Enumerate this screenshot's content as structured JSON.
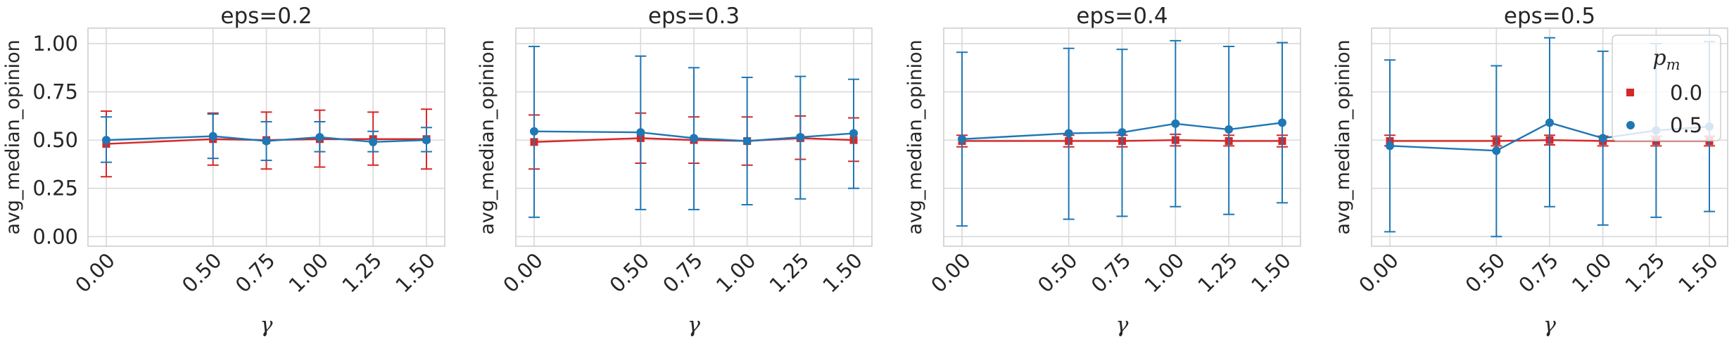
{
  "figure": {
    "legend": {
      "title": "p",
      "title_subscript": "m",
      "placement": "top-right of last panel",
      "entries": [
        {
          "label": "0.0",
          "color": "#d62728",
          "marker": "square"
        },
        {
          "label": "0.5",
          "color": "#1f77b4",
          "marker": "circle"
        }
      ]
    }
  },
  "chart_data": [
    {
      "type": "line",
      "title": "eps=0.2",
      "xlabel": "γ",
      "ylabel": "avg_median_opinion",
      "x": [
        0.0,
        0.5,
        0.75,
        1.0,
        1.25,
        1.5
      ],
      "x_tick_labels": [
        "0.00",
        "0.50",
        "0.75",
        "1.00",
        "1.25",
        "1.50"
      ],
      "ylim": [
        -0.05,
        1.08
      ],
      "y_ticks": [
        0.0,
        0.25,
        0.5,
        0.75,
        1.0
      ],
      "y_tick_labels": [
        "0.00",
        "0.25",
        "0.50",
        "0.75",
        "1.00"
      ],
      "grid": true,
      "series": [
        {
          "name": "0.0",
          "color": "#d62728",
          "marker": "square",
          "values": [
            0.48,
            0.505,
            0.5,
            0.505,
            0.505,
            0.505
          ],
          "err_low": [
            0.31,
            0.37,
            0.35,
            0.36,
            0.37,
            0.35
          ],
          "err_high": [
            0.65,
            0.64,
            0.645,
            0.655,
            0.645,
            0.66
          ]
        },
        {
          "name": "0.5",
          "color": "#1f77b4",
          "marker": "circle",
          "values": [
            0.5,
            0.52,
            0.495,
            0.515,
            0.49,
            0.5
          ],
          "err_low": [
            0.385,
            0.405,
            0.395,
            0.44,
            0.44,
            0.44
          ],
          "err_high": [
            0.62,
            0.635,
            0.595,
            0.595,
            0.545,
            0.565
          ]
        }
      ]
    },
    {
      "type": "line",
      "title": "eps=0.3",
      "xlabel": "γ",
      "ylabel": "avg_median_opinion",
      "x": [
        0.0,
        0.5,
        0.75,
        1.0,
        1.25,
        1.5
      ],
      "x_tick_labels": [
        "0.00",
        "0.50",
        "0.75",
        "1.00",
        "1.25",
        "1.50"
      ],
      "ylim": [
        -0.05,
        1.08
      ],
      "grid": true,
      "series": [
        {
          "name": "0.0",
          "color": "#d62728",
          "marker": "square",
          "values": [
            0.49,
            0.51,
            0.5,
            0.495,
            0.51,
            0.5
          ],
          "err_low": [
            0.35,
            0.38,
            0.38,
            0.37,
            0.4,
            0.39
          ],
          "err_high": [
            0.63,
            0.64,
            0.62,
            0.62,
            0.625,
            0.615
          ]
        },
        {
          "name": "0.5",
          "color": "#1f77b4",
          "marker": "circle",
          "values": [
            0.545,
            0.54,
            0.51,
            0.495,
            0.515,
            0.535
          ],
          "err_low": [
            0.1,
            0.14,
            0.14,
            0.165,
            0.195,
            0.25
          ],
          "err_high": [
            0.985,
            0.935,
            0.875,
            0.825,
            0.83,
            0.815
          ]
        }
      ]
    },
    {
      "type": "line",
      "title": "eps=0.4",
      "xlabel": "γ",
      "ylabel": "avg_median_opinion",
      "x": [
        0.0,
        0.5,
        0.75,
        1.0,
        1.25,
        1.5
      ],
      "x_tick_labels": [
        "0.00",
        "0.50",
        "0.75",
        "1.00",
        "1.25",
        "1.50"
      ],
      "ylim": [
        -0.05,
        1.08
      ],
      "grid": true,
      "series": [
        {
          "name": "0.0",
          "color": "#d62728",
          "marker": "square",
          "values": [
            0.495,
            0.495,
            0.495,
            0.5,
            0.495,
            0.495
          ],
          "err_low": [
            0.465,
            0.465,
            0.465,
            0.47,
            0.47,
            0.465
          ],
          "err_high": [
            0.525,
            0.525,
            0.525,
            0.53,
            0.525,
            0.525
          ]
        },
        {
          "name": "0.5",
          "color": "#1f77b4",
          "marker": "circle",
          "values": [
            0.505,
            0.535,
            0.54,
            0.585,
            0.555,
            0.59
          ],
          "err_low": [
            0.055,
            0.09,
            0.105,
            0.155,
            0.115,
            0.175
          ],
          "err_high": [
            0.955,
            0.975,
            0.97,
            1.015,
            0.985,
            1.005
          ]
        }
      ]
    },
    {
      "type": "line",
      "title": "eps=0.5",
      "xlabel": "γ",
      "ylabel": "avg_median_opinion",
      "x": [
        0.0,
        0.5,
        0.75,
        1.0,
        1.25,
        1.5
      ],
      "x_tick_labels": [
        "0.00",
        "0.50",
        "0.75",
        "1.00",
        "1.25",
        "1.50"
      ],
      "ylim": [
        -0.05,
        1.08
      ],
      "grid": true,
      "series": [
        {
          "name": "0.0",
          "color": "#d62728",
          "marker": "square",
          "values": [
            0.495,
            0.495,
            0.5,
            0.495,
            0.495,
            0.495
          ],
          "err_low": [
            0.47,
            0.47,
            0.475,
            0.47,
            0.47,
            0.47
          ],
          "err_high": [
            0.525,
            0.52,
            0.525,
            0.52,
            0.52,
            0.52
          ]
        },
        {
          "name": "0.5",
          "color": "#1f77b4",
          "marker": "circle",
          "values": [
            0.47,
            0.445,
            0.59,
            0.51,
            0.55,
            0.57
          ],
          "err_low": [
            0.025,
            0.0,
            0.155,
            0.06,
            0.1,
            0.13
          ],
          "err_high": [
            0.915,
            0.885,
            1.03,
            0.96,
            1.0,
            1.01
          ]
        }
      ]
    }
  ]
}
